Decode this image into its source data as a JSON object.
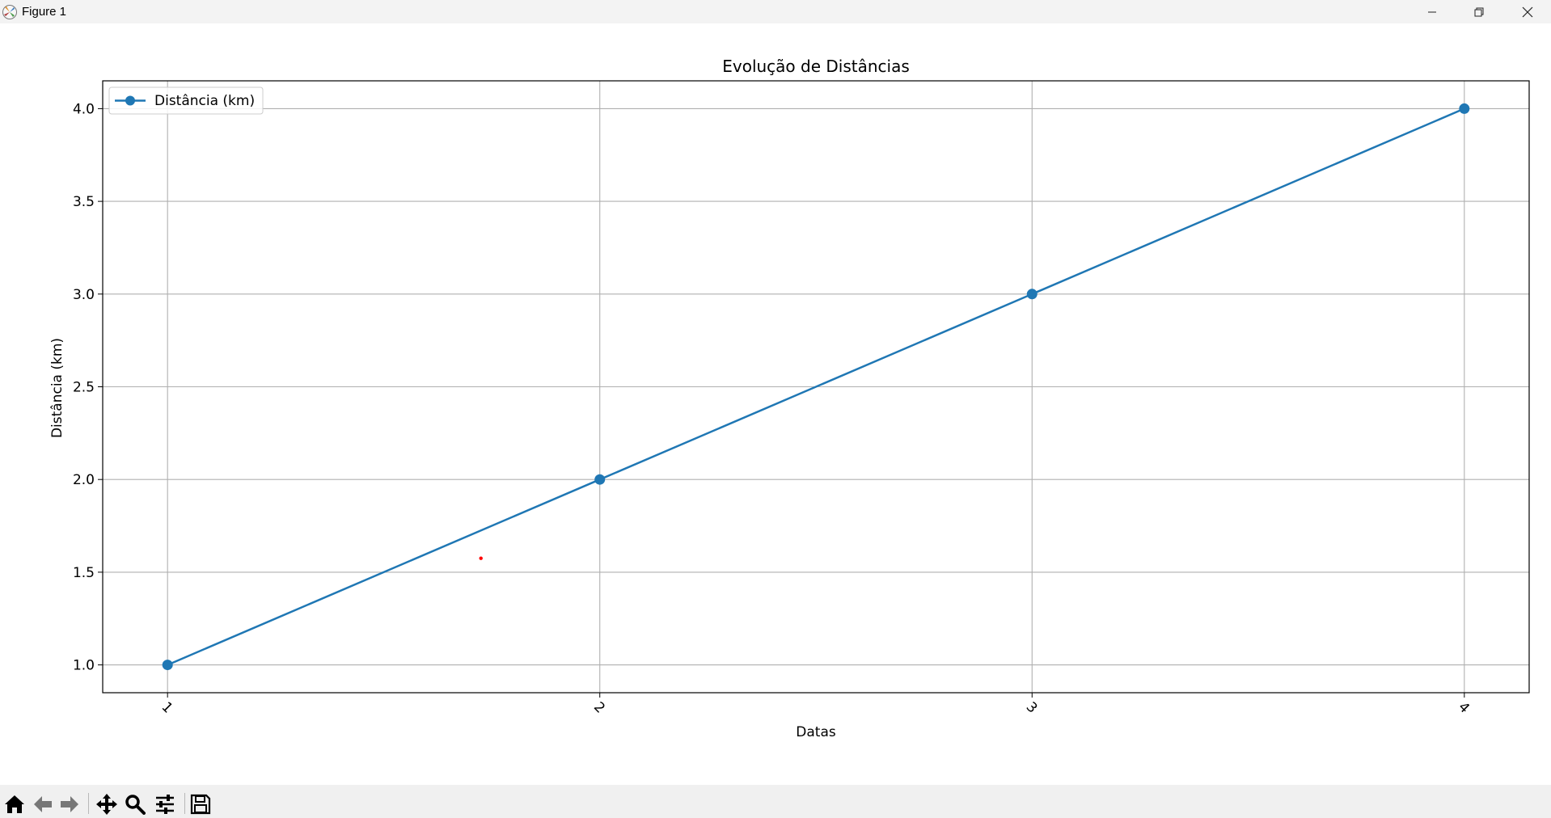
{
  "window": {
    "title": "Figure 1",
    "controls": [
      "minimize-icon",
      "restore-icon",
      "close-icon"
    ]
  },
  "toolbar": {
    "buttons": [
      {
        "name": "home",
        "icon": "home-icon"
      },
      {
        "name": "back",
        "icon": "arrow-left-icon"
      },
      {
        "name": "forward",
        "icon": "arrow-right-icon"
      },
      {
        "name": "pan",
        "icon": "move-icon"
      },
      {
        "name": "zoom",
        "icon": "magnifier-icon"
      },
      {
        "name": "configure-subplots",
        "icon": "sliders-icon"
      },
      {
        "name": "save",
        "icon": "floppy-disk-icon"
      }
    ]
  },
  "colors": {
    "series": "#1f77b4",
    "grid": "#b0b0b0",
    "marker_red": "#ff0000"
  },
  "chart_data": {
    "type": "line",
    "title": "Evolução de Distâncias",
    "xlabel": "Datas",
    "ylabel": "Distância (km)",
    "x": [
      "1",
      "2",
      "3",
      "4"
    ],
    "series": [
      {
        "name": "Distância (km)",
        "values": [
          1.0,
          2.0,
          3.0,
          4.0
        ],
        "marker": "circle",
        "color": "#1f77b4"
      }
    ],
    "yticks": [
      "1.0",
      "1.5",
      "2.0",
      "2.5",
      "3.0",
      "3.5",
      "4.0"
    ],
    "ylim": [
      0.85,
      4.15
    ],
    "grid": true,
    "legend_position": "upper-left",
    "xtick_rotation": 45,
    "extra_point": {
      "x": 1.725,
      "y": 1.575,
      "color": "#ff0000"
    }
  }
}
